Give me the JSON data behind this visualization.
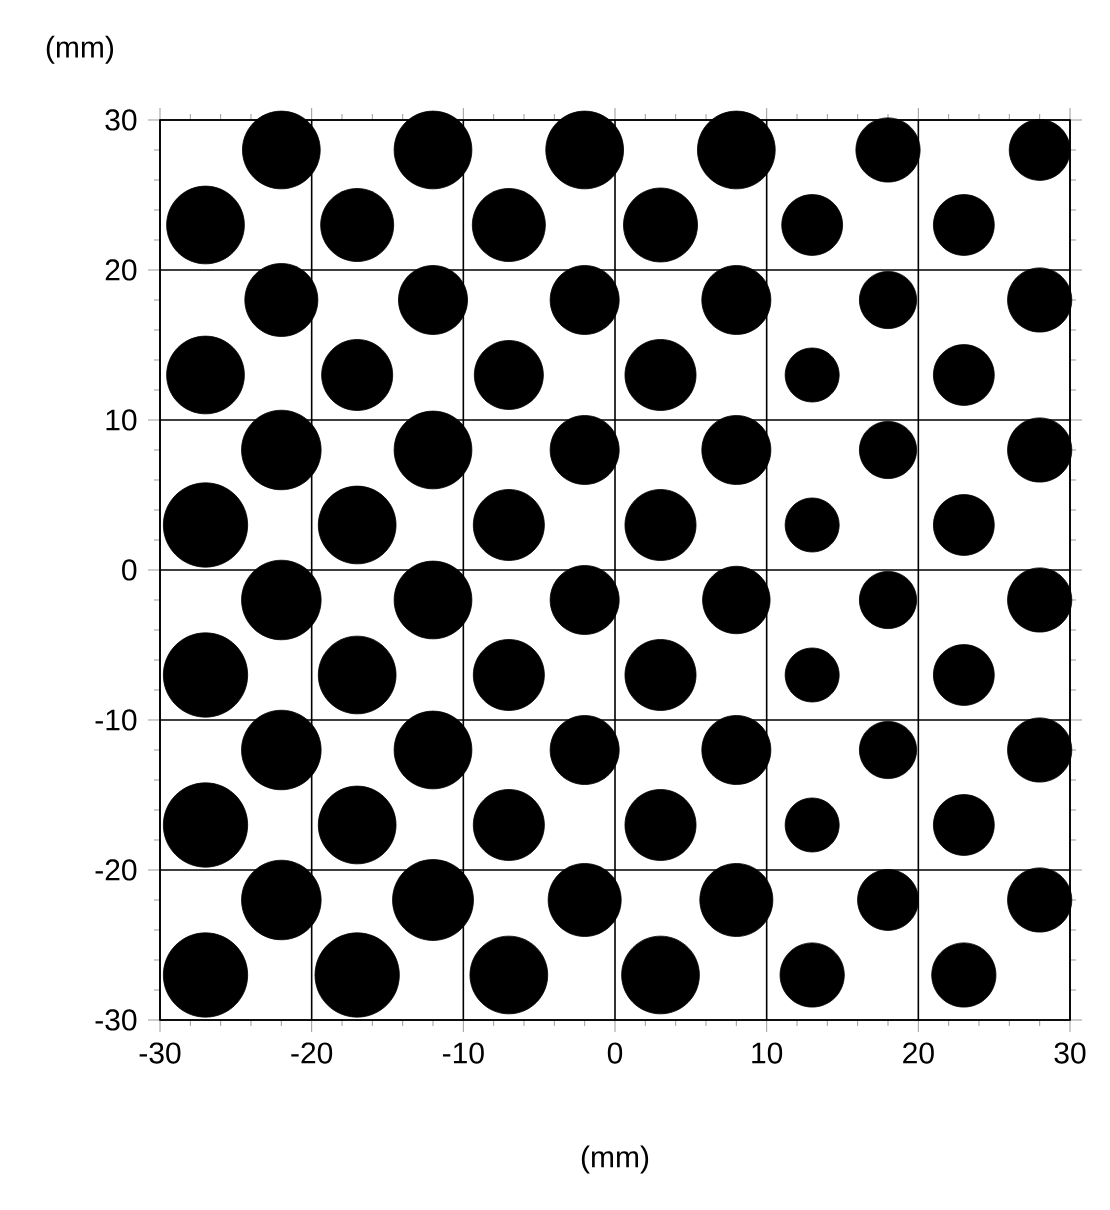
{
  "chart_data": {
    "type": "bubble",
    "xlabel": "(mm)",
    "ylabel": "(mm)",
    "xlim": [
      -30,
      30
    ],
    "ylim": [
      -30,
      30
    ],
    "xticks": [
      -30,
      -20,
      -10,
      0,
      10,
      20,
      30
    ],
    "yticks": [
      -30,
      -20,
      -10,
      0,
      10,
      20,
      30
    ],
    "grid": true,
    "series": [
      {
        "color": "#000000",
        "x": [
          -22,
          -12,
          -2,
          8,
          18,
          28,
          -27,
          -17,
          -7,
          3,
          13,
          23,
          -22,
          -12,
          -2,
          8,
          18,
          28,
          -27,
          -17,
          -7,
          3,
          13,
          23,
          -22,
          -12,
          -2,
          8,
          18,
          28,
          -27,
          -17,
          -7,
          3,
          13,
          23,
          -22,
          -12,
          -2,
          8,
          18,
          28,
          -27,
          -17,
          -7,
          3,
          13,
          23,
          -22,
          -12,
          -2,
          8,
          18,
          28,
          -27,
          -17,
          -7,
          3,
          13,
          23,
          -22,
          -12,
          -2,
          8,
          18,
          28,
          -27,
          -17,
          -7,
          3,
          13,
          23
        ],
        "values": [
          28,
          28,
          28,
          28,
          28,
          28,
          23,
          23,
          23,
          23,
          23,
          23,
          18,
          18,
          18,
          18,
          18,
          18,
          13,
          13,
          13,
          13,
          13,
          13,
          8,
          8,
          8,
          8,
          8,
          8,
          3,
          3,
          3,
          3,
          3,
          3,
          -2,
          -2,
          -2,
          -2,
          -2,
          -2,
          -7,
          -7,
          -7,
          -7,
          -7,
          -7,
          -12,
          -12,
          -12,
          -12,
          -12,
          -12,
          -17,
          -17,
          -17,
          -17,
          -17,
          -17,
          -22,
          -22,
          -22,
          -22,
          -22,
          -22,
          -27,
          -27,
          -27,
          -27,
          -27,
          -27
        ],
        "sizes": [
          0.85,
          0.85,
          0.85,
          0.85,
          0.58,
          0.52,
          0.85,
          0.75,
          0.75,
          0.77,
          0.52,
          0.52,
          0.75,
          0.67,
          0.67,
          0.67,
          0.46,
          0.58,
          0.85,
          0.71,
          0.67,
          0.71,
          0.41,
          0.52,
          0.89,
          0.85,
          0.67,
          0.67,
          0.46,
          0.58,
          1.0,
          0.85,
          0.71,
          0.71,
          0.41,
          0.52,
          0.89,
          0.85,
          0.67,
          0.64,
          0.46,
          0.58,
          1.0,
          0.85,
          0.71,
          0.71,
          0.41,
          0.52,
          0.89,
          0.85,
          0.67,
          0.67,
          0.46,
          0.58,
          1.0,
          0.85,
          0.71,
          0.71,
          0.41,
          0.52,
          0.89,
          0.92,
          0.75,
          0.75,
          0.52,
          0.58,
          1.0,
          1.0,
          0.85,
          0.85,
          0.58,
          0.58
        ]
      }
    ]
  }
}
